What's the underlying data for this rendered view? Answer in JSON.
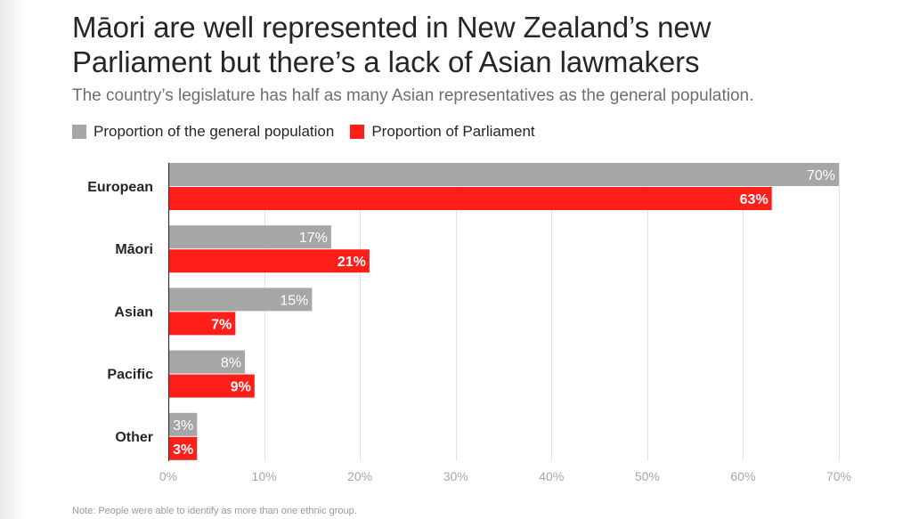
{
  "title": "Māori are well represented in New Zealand’s new Parliament but there’s a lack of Asian lawmakers",
  "title_line1": "Māori are well represented in New Zealand’s new",
  "title_line2": "Parliament but there’s a lack of Asian lawmakers",
  "subtitle": "The country’s legislature has half as many Asian representatives as the general population.",
  "note": "Note: People were able to identify as more than one ethnic group.",
  "colors": {
    "population": "#a6a6a6",
    "parliament": "#fe1e1a",
    "grid": "#e3e3e3",
    "axis": "#333333",
    "tick_label": "#a6a6a6",
    "category_label": "#262626"
  },
  "chart_data": {
    "type": "bar",
    "orientation": "horizontal",
    "title": "Māori are well represented in New Zealand’s new Parliament but there’s a lack of Asian lawmakers",
    "subtitle": "The country’s legislature has half as many Asian representatives as the general population.",
    "categories": [
      "European",
      "Māori",
      "Asian",
      "Pacific",
      "Other"
    ],
    "series": [
      {
        "name": "Proportion of the general population",
        "values": [
          70,
          17,
          15,
          8,
          3
        ],
        "labels": [
          "70%",
          "17%",
          "15%",
          "8%",
          "3%"
        ]
      },
      {
        "name": "Proportion of Parliament",
        "values": [
          63,
          21,
          7,
          9,
          3
        ],
        "labels": [
          "63%",
          "21%",
          "7%",
          "9%",
          "3%"
        ]
      }
    ],
    "xlim": [
      0,
      70
    ],
    "xticks": [
      0,
      10,
      20,
      30,
      40,
      50,
      60,
      70
    ],
    "xtick_labels": [
      "0%",
      "10%",
      "20%",
      "30%",
      "40%",
      "50%",
      "60%",
      "70%"
    ],
    "xlabel": "",
    "ylabel": "",
    "grid": true,
    "legend_position": "top-left",
    "note": "Note: People were able to identify as more than one ethnic group."
  }
}
